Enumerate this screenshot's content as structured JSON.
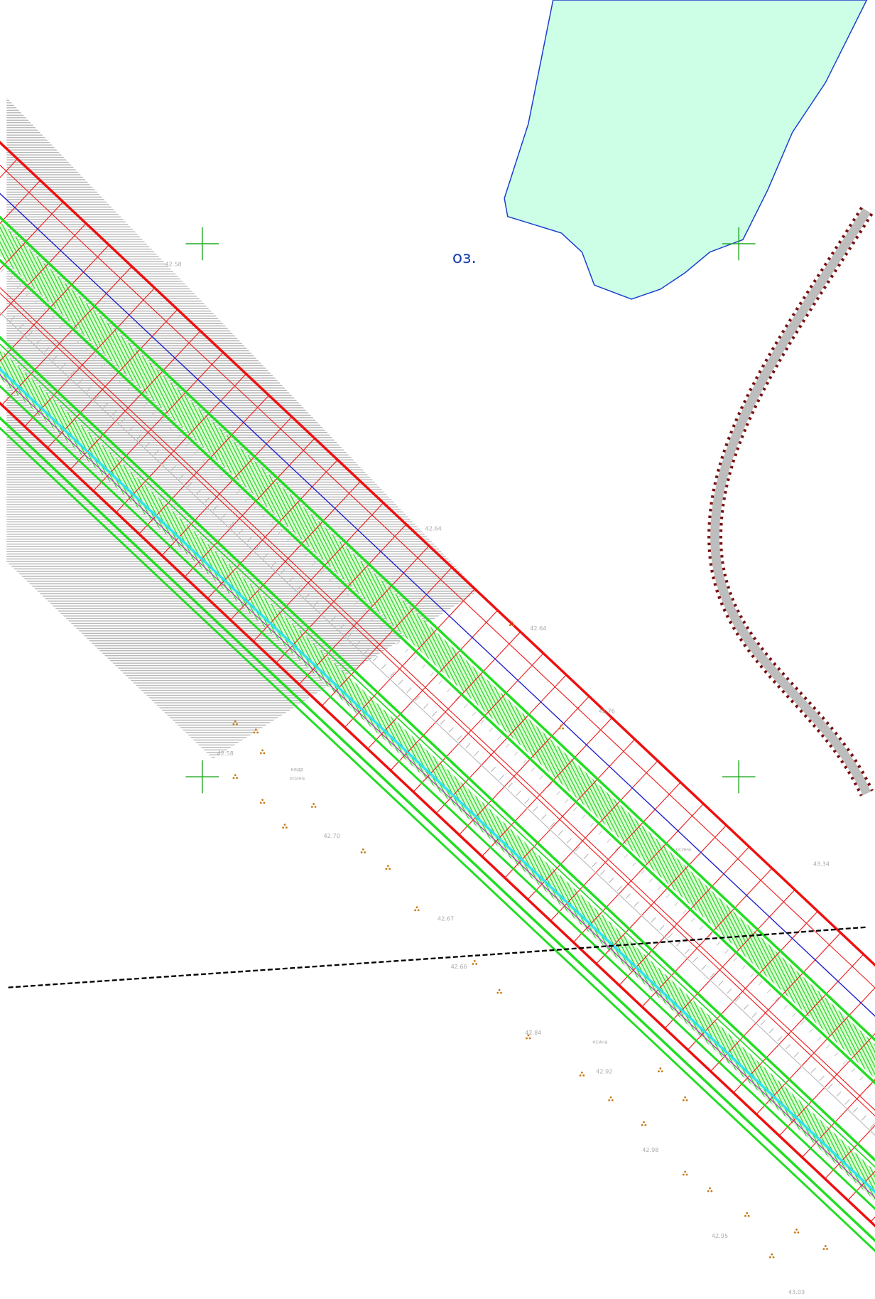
{
  "lake_label": "оз.",
  "elevations": [
    "42.58",
    "42.64",
    "42.64",
    "42.76",
    "43.34",
    "42.58",
    "42.70",
    "42.67",
    "42.66",
    "42.84",
    "42.92",
    "42.98",
    "42.95",
    "43.03"
  ],
  "vegetation": [
    "кедр",
    "осина",
    "осина",
    "осина"
  ]
}
